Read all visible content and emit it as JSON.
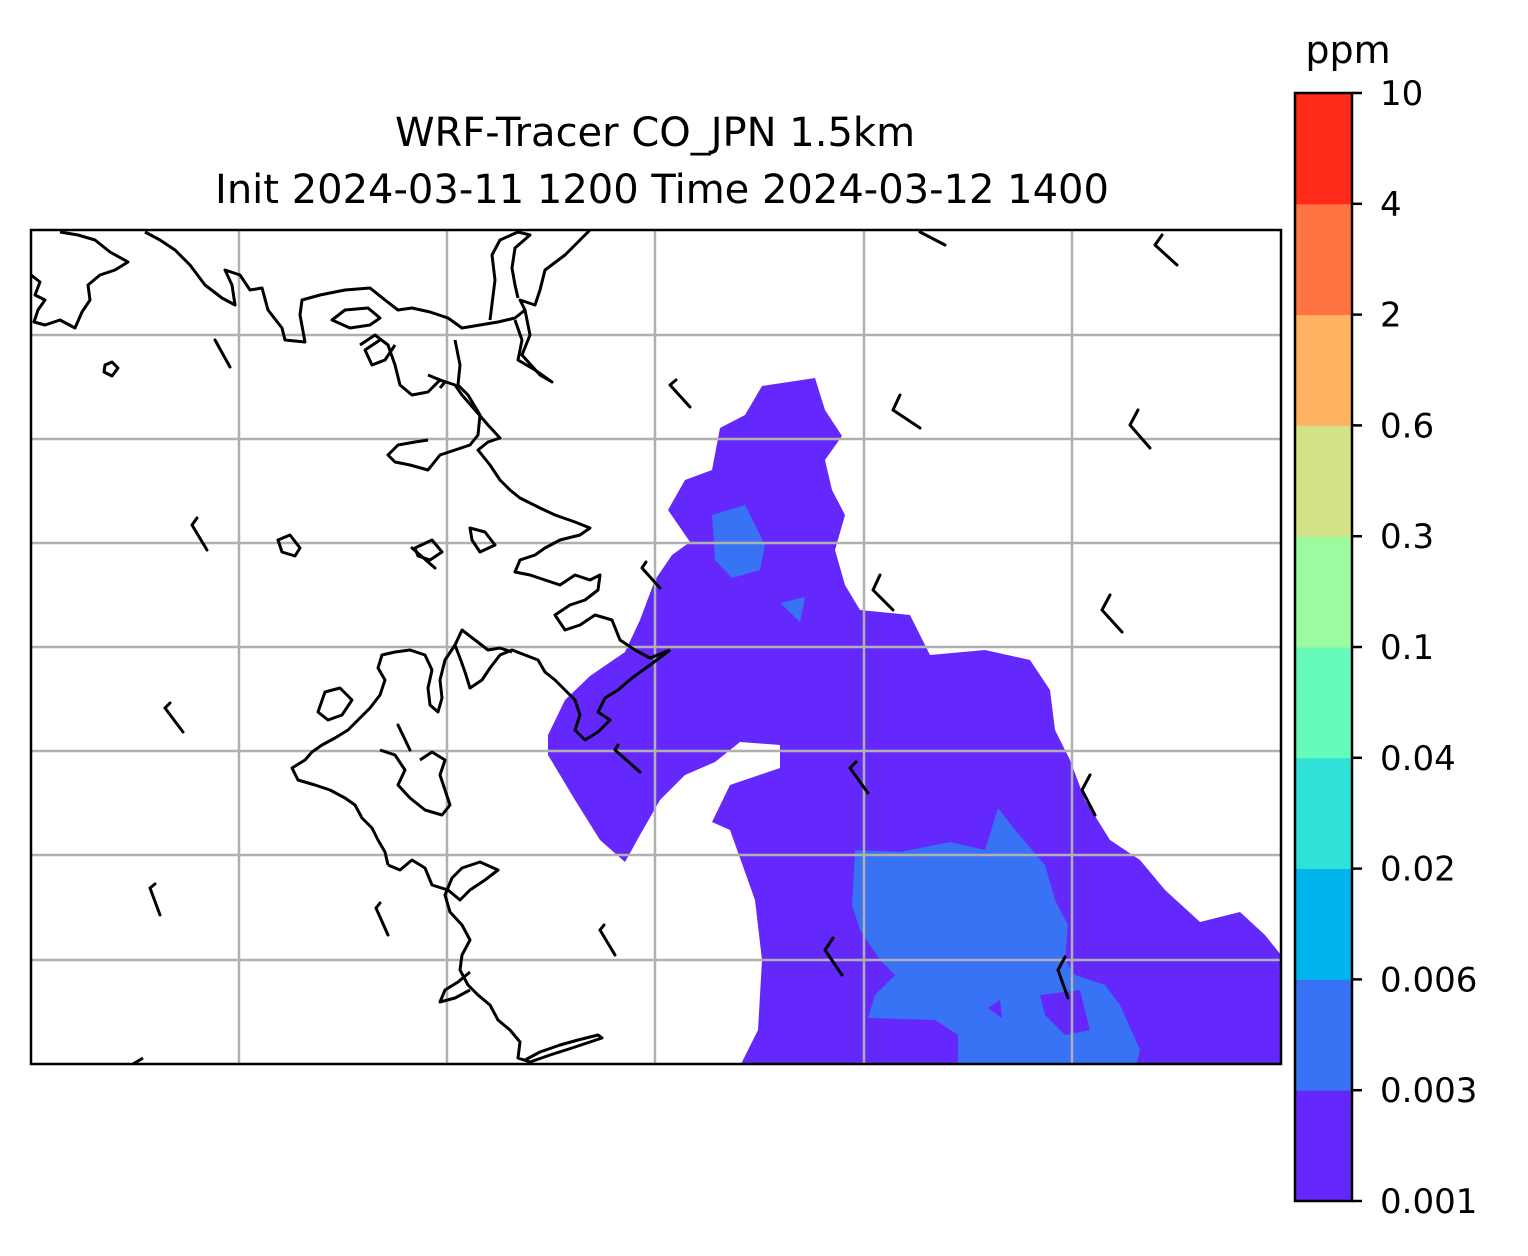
{
  "figure": {
    "title_line1": "WRF-Tracer CO_JPN 1.5km",
    "title_line2": "Init 2024-03-11 1200 Time 2024-03-12 1400"
  },
  "colorbar": {
    "unit": "ppm",
    "levels": [
      "0.001",
      "0.003",
      "0.006",
      "0.02",
      "0.04",
      "0.1",
      "0.3",
      "0.6",
      "2",
      "4",
      "10"
    ],
    "colors": [
      "#6428fc",
      "#3773f4",
      "#00b4ee",
      "#2fe1d6",
      "#66fbba",
      "#9dfb9f",
      "#d3e286",
      "#ffb262",
      "#ff7340",
      "#ff2a18"
    ]
  },
  "map": {
    "gridlines": true,
    "grid_color": "#b0b0b0",
    "coastline_color": "#000000"
  }
}
